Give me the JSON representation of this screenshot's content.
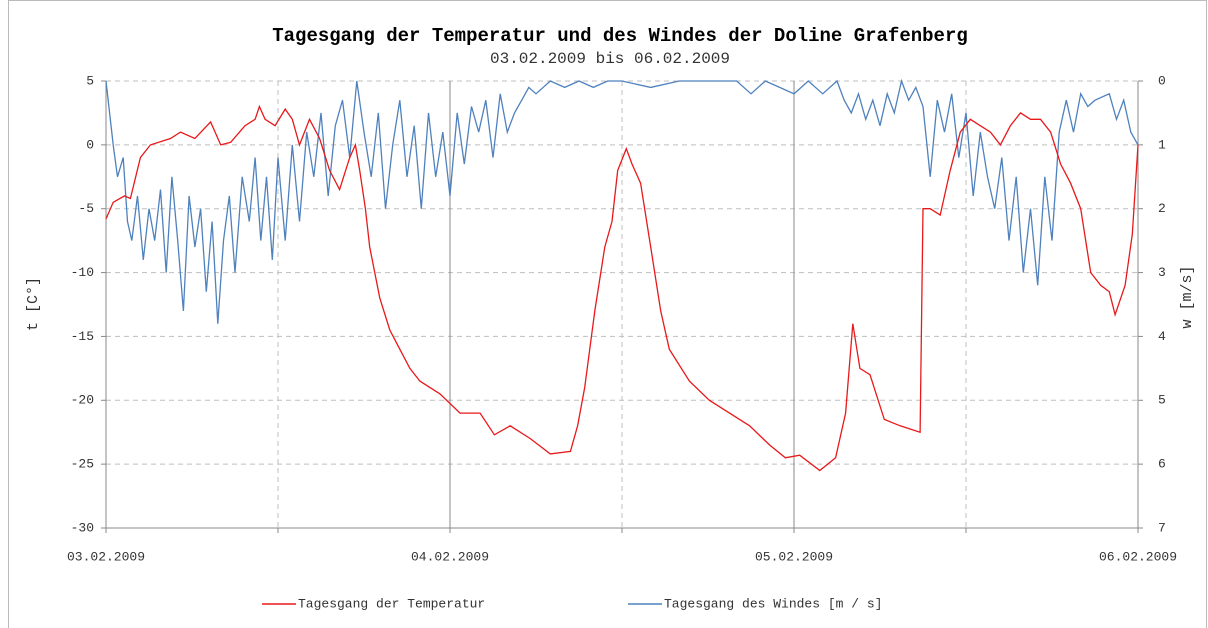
{
  "chart_data": {
    "type": "line",
    "title": "Tagesgang der Temperatur und des Windes der Doline Grafenberg",
    "subtitle": "03.02.2009 bis 06.02.2009",
    "ylabel": "t [C°]",
    "y2label": "w [m/s]",
    "xlim": [
      0,
      72
    ],
    "xticks": [
      {
        "value": 0,
        "label": "03.02.2009"
      },
      {
        "value": 24,
        "label": "04.02.2009"
      },
      {
        "value": 48,
        "label": "05.02.2009"
      },
      {
        "value": 72,
        "label": "06.02.2009"
      }
    ],
    "xminor": [
      12,
      36,
      60
    ],
    "ylim": [
      -30,
      5
    ],
    "yticks": [
      -30,
      -25,
      -20,
      -15,
      -10,
      -5,
      0,
      5
    ],
    "y2lim": [
      7,
      0
    ],
    "y2ticks": [
      0,
      1,
      2,
      3,
      4,
      5,
      6,
      7
    ],
    "grid": true,
    "legend": "bottom",
    "series": [
      {
        "name": "Tagesgang der Temperatur",
        "color": "#e8191b",
        "axis": "y",
        "x": [
          0,
          0.5,
          1.3,
          1.7,
          2.4,
          3.1,
          4.5,
          5.2,
          6.2,
          7.3,
          8,
          8.7,
          9.7,
          10.4,
          10.7,
          11.1,
          11.8,
          12.5,
          13,
          13.5,
          14.2,
          14.9,
          15.6,
          16.3,
          17,
          17.4,
          17.7,
          18.1,
          18.4,
          19.1,
          19.8,
          20.5,
          21.2,
          21.9,
          23.3,
          24.7,
          26.1,
          27.1,
          28.2,
          29.6,
          31,
          32.4,
          32.9,
          33.4,
          34.1,
          34.8,
          35.3,
          35.7,
          36.3,
          36.7,
          37.3,
          38,
          38.7,
          39.3,
          40.7,
          42.1,
          43.5,
          44.9,
          46.3,
          47.4,
          48.4,
          49.8,
          50.9,
          51.6,
          52.1,
          52.6,
          53.3,
          54.3,
          55.4,
          56.8,
          57,
          57.5,
          58.2,
          58.9,
          59.6,
          60.3,
          61,
          61.7,
          62.4,
          63.1,
          63.8,
          64.5,
          65.2,
          65.9,
          66.6,
          67.3,
          68,
          68.7,
          69.4,
          70,
          70.4,
          71.1,
          71.6,
          72
        ],
        "values": [
          -5.8,
          -4.5,
          -4,
          -4.2,
          -1,
          0,
          0.5,
          1,
          0.5,
          1.8,
          0,
          0.2,
          1.5,
          2,
          3,
          2,
          1.5,
          2.8,
          2,
          0,
          2,
          0.5,
          -2,
          -3.5,
          -1,
          0,
          -2,
          -5,
          -8,
          -12,
          -14.5,
          -16,
          -17.5,
          -18.5,
          -19.5,
          -21,
          -21,
          -22.7,
          -22,
          -23,
          -24.2,
          -24,
          -22,
          -19,
          -13,
          -8,
          -6,
          -2,
          -0.3,
          -1.5,
          -3,
          -8,
          -13,
          -16,
          -18.5,
          -20,
          -21,
          -22,
          -23.5,
          -24.5,
          -24.3,
          -25.5,
          -24.5,
          -21,
          -14,
          -17.5,
          -18,
          -21.5,
          -22,
          -22.5,
          -5,
          -5,
          -5.5,
          -2,
          1,
          2,
          1.5,
          1,
          0,
          1.5,
          2.5,
          2,
          2,
          1,
          -1.5,
          -3,
          -5,
          -10,
          -11,
          -11.5,
          -13.3,
          -11,
          -7,
          0
        ]
      },
      {
        "name": "Tagesgang des Windes [m / s]",
        "color": "#4f81bd",
        "axis": "y2",
        "x": [
          0,
          0.5,
          0.8,
          1.2,
          1.5,
          1.8,
          2.2,
          2.6,
          3,
          3.4,
          3.8,
          4.2,
          4.6,
          5,
          5.4,
          5.8,
          6.2,
          6.6,
          7,
          7.4,
          7.8,
          8.2,
          8.6,
          9,
          9.5,
          10,
          10.4,
          10.8,
          11.2,
          11.6,
          12,
          12.5,
          13,
          13.5,
          14,
          14.5,
          15,
          15.5,
          16,
          16.5,
          17,
          17.5,
          18,
          18.5,
          19,
          19.5,
          20,
          20.5,
          21,
          21.5,
          22,
          22.5,
          23,
          23.5,
          24,
          24.5,
          25,
          25.5,
          26,
          26.5,
          27,
          27.5,
          28,
          28.5,
          29,
          29.5,
          30,
          31,
          32,
          33,
          34,
          35,
          36,
          38,
          40,
          44,
          45,
          46,
          47,
          48,
          49,
          50,
          51,
          51.5,
          52,
          52.5,
          53,
          53.5,
          54,
          54.5,
          55,
          55.5,
          56,
          56.5,
          57,
          57.5,
          58,
          58.5,
          59,
          59.5,
          60,
          60.5,
          61,
          61.5,
          62,
          62.5,
          63,
          63.5,
          64,
          64.5,
          65,
          65.5,
          66,
          66.5,
          67,
          67.5,
          68,
          68.5,
          69,
          70,
          70.5,
          71,
          71.5,
          72
        ],
        "values": [
          0,
          1,
          1.5,
          1.2,
          2.2,
          2.5,
          1.8,
          2.8,
          2,
          2.5,
          1.7,
          3,
          1.5,
          2.5,
          3.6,
          1.8,
          2.6,
          2,
          3.3,
          2.2,
          3.8,
          2.5,
          1.8,
          3,
          1.5,
          2.2,
          1.2,
          2.5,
          1.5,
          2.8,
          1.2,
          2.5,
          1,
          2.2,
          0.8,
          1.5,
          0.5,
          1.8,
          0.7,
          0.3,
          1.2,
          0,
          0.8,
          1.5,
          0.5,
          2,
          1,
          0.3,
          1.5,
          0.7,
          2,
          0.5,
          1.5,
          0.8,
          1.8,
          0.5,
          1.3,
          0.4,
          0.8,
          0.3,
          1.2,
          0.2,
          0.8,
          0.5,
          0.3,
          0.1,
          0.2,
          0,
          0.1,
          0,
          0.1,
          0,
          0,
          0.1,
          0,
          0,
          0.2,
          0,
          0.1,
          0.2,
          0,
          0.2,
          0,
          0.3,
          0.5,
          0.2,
          0.6,
          0.3,
          0.7,
          0.2,
          0.5,
          0,
          0.3,
          0.1,
          0.4,
          1.5,
          0.3,
          0.8,
          0.2,
          1.2,
          0.5,
          1.8,
          0.8,
          1.5,
          2,
          1.2,
          2.5,
          1.5,
          3,
          2,
          3.2,
          1.5,
          2.5,
          0.8,
          0.3,
          0.8,
          0.2,
          0.4,
          0.3,
          0.2,
          0.6,
          0.3,
          0.8,
          1
        ]
      }
    ]
  }
}
